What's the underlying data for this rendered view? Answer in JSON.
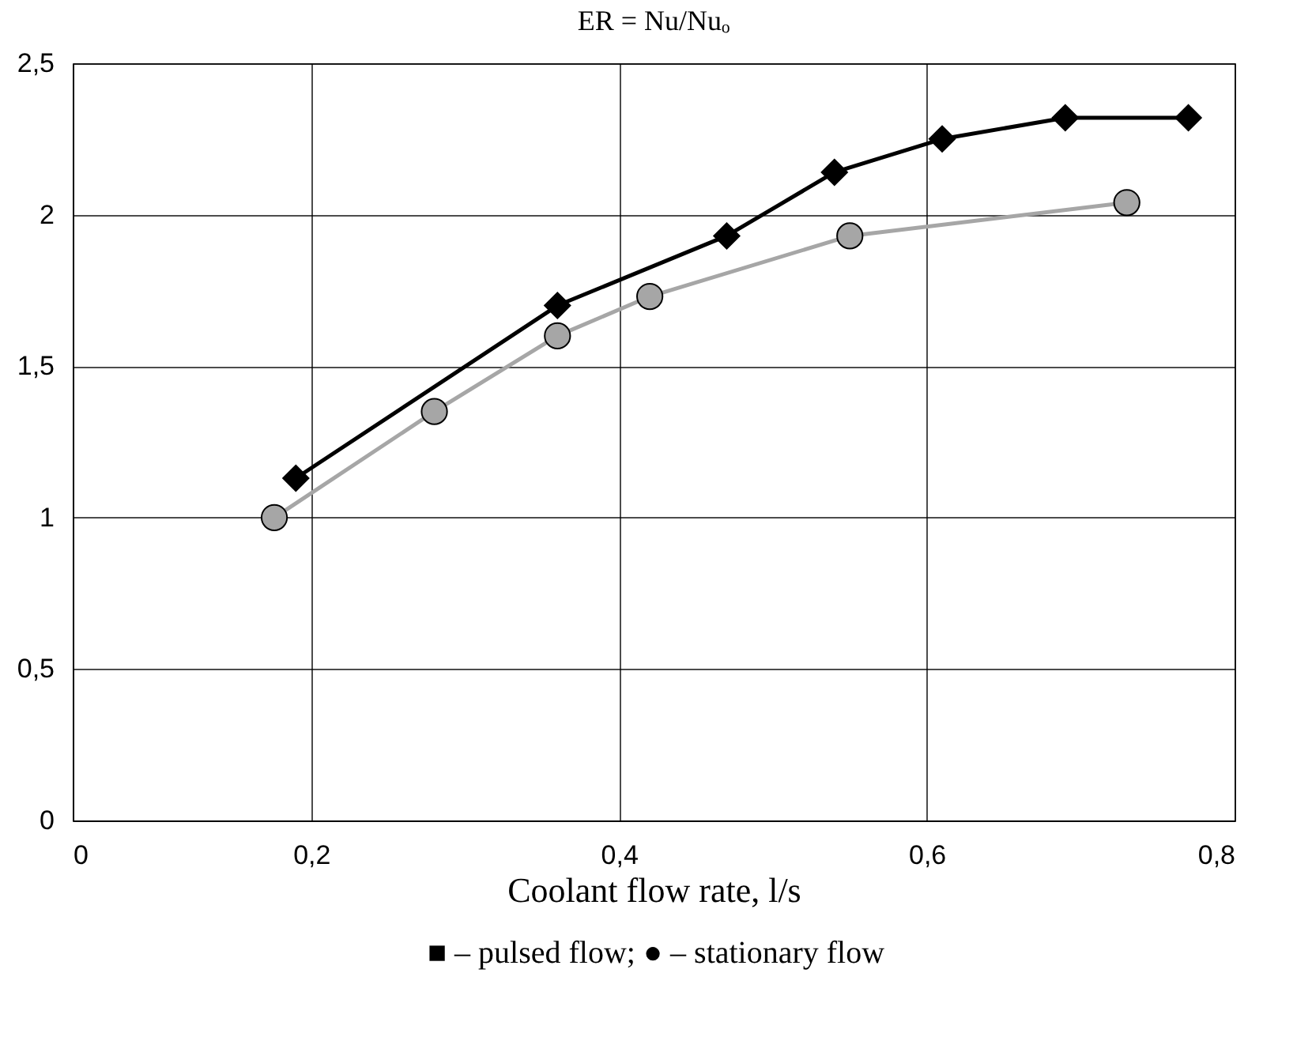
{
  "chart_data": {
    "type": "line",
    "title": "ER = Nu/Nuₒ",
    "xlabel": "Coolant flow rate, l/s",
    "series": [
      {
        "color": "#000000",
        "marker": "diamond",
        "x": [
          0.19,
          0.36,
          0.47,
          0.54,
          0.61,
          0.69,
          0.77
        ],
        "values": [
          1.13,
          1.7,
          1.93,
          2.14,
          2.25,
          2.32,
          2.32
        ]
      },
      {
        "color": "#a6a6a6",
        "marker": "circle",
        "x": [
          0.176,
          0.28,
          0.36,
          0.42,
          0.55,
          0.73
        ],
        "values": [
          1.0,
          1.35,
          1.6,
          1.73,
          1.93,
          2.04
        ]
      }
    ],
    "xlim": [
      0.045,
      0.8
    ],
    "xticks": [
      {
        "value": 0.045,
        "label": "0"
      },
      {
        "value": 0.2,
        "label": "0,2"
      },
      {
        "value": 0.4,
        "label": "0,4"
      },
      {
        "value": 0.6,
        "label": "0,6"
      },
      {
        "value": 0.8,
        "label": "0,8"
      }
    ],
    "ylim": [
      0,
      2.5
    ],
    "yticks": [
      0,
      {
        "value": 0.5,
        "label": "0,5"
      },
      1,
      {
        "value": 1.5,
        "label": "1,5"
      },
      2,
      {
        "value": 2.5,
        "label": "2,5"
      }
    ],
    "grid": true,
    "annotations": [
      "■ – pulsed flow; ● – stationary flow"
    ]
  }
}
